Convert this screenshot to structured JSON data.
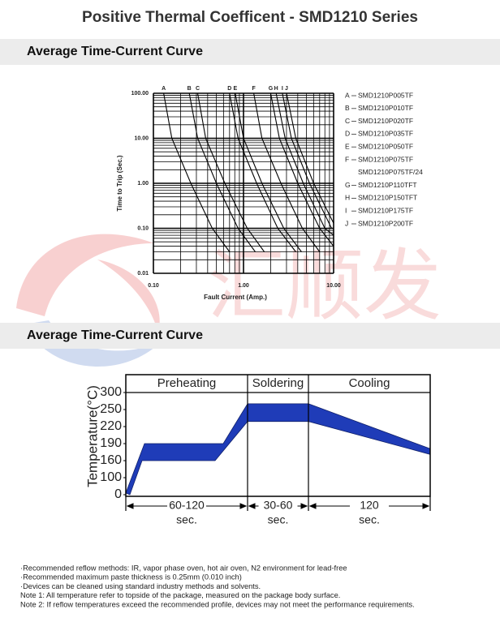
{
  "header": {
    "title": "Positive Thermal Coefficent - SMD1210 Series"
  },
  "sections": [
    "Average Time-Current Curve",
    "Average Time-Current Curve"
  ],
  "watermark": "汇顺发",
  "chart_data": [
    {
      "type": "line",
      "xlabel": "Fault Current (Amp.)",
      "ylabel": "Time to Trip (Sec.)",
      "log_x": true,
      "log_y": true,
      "grid": "minor",
      "color": "#000000",
      "xlim": [
        0.1,
        10
      ],
      "ylim": [
        0.01,
        100
      ],
      "xticks": [
        {
          "value": 0.1,
          "label": "0.10"
        },
        {
          "value": 1,
          "label": "1.00"
        },
        {
          "value": 10,
          "label": "10.00"
        }
      ],
      "yticks": [
        0.01,
        {
          "value": 0.1,
          "label": "0.10"
        },
        {
          "value": 1,
          "label": "1.00"
        },
        {
          "value": 10,
          "label": "10.00"
        },
        {
          "value": 100,
          "label": "100.00"
        }
      ],
      "series": [
        {
          "label": "A",
          "name": "SMD1210P005TF",
          "x": [
            0.13,
            0.16,
            0.26,
            0.45,
            0.7
          ],
          "values": [
            100,
            10,
            1,
            0.1,
            0.03
          ]
        },
        {
          "label": "B",
          "name": "SMD1210P010TF",
          "x": [
            0.25,
            0.31,
            0.5,
            0.87,
            1.35
          ],
          "values": [
            100,
            10,
            1,
            0.1,
            0.03
          ]
        },
        {
          "label": "C",
          "name": "SMD1210P020TF",
          "x": [
            0.31,
            0.38,
            0.62,
            1.1,
            1.7
          ],
          "values": [
            100,
            10,
            1,
            0.1,
            0.03
          ]
        },
        {
          "label": "D",
          "name": "SMD1210P035TF",
          "x": [
            0.7,
            0.87,
            1.4,
            2.4,
            3.8
          ],
          "values": [
            100,
            10,
            1,
            0.1,
            0.03
          ]
        },
        {
          "label": "E",
          "name": "SMD1210P050TF",
          "x": [
            0.81,
            1.0,
            1.6,
            2.8,
            4.4
          ],
          "values": [
            100,
            10,
            1,
            0.1,
            0.03
          ]
        },
        {
          "label": "F",
          "name": "SMD1210P075TF",
          "x": [
            1.3,
            1.6,
            2.6,
            4.5,
            7
          ],
          "values": [
            100,
            10,
            1,
            0.1,
            0.03
          ]
        },
        {
          "name": "SMD1210P075TF/24",
          "x": [],
          "values": []
        },
        {
          "label": "G",
          "name": "SMD1210P110TFT",
          "x": [
            2.0,
            2.5,
            4.0,
            7.0,
            10
          ],
          "values": [
            100,
            10,
            1,
            0.1,
            0.04
          ]
        },
        {
          "label": "H",
          "name": "SMD1210P150TFT",
          "x": [
            2.3,
            2.9,
            4.6,
            8,
            10
          ],
          "values": [
            100,
            10,
            1,
            0.1,
            0.07
          ]
        },
        {
          "label": "I",
          "name": "SMD1210P175TF",
          "x": [
            2.7,
            3.4,
            5.4,
            9.5
          ],
          "values": [
            100,
            10,
            1,
            0.1
          ]
        },
        {
          "label": "J",
          "name": "SMD1210P200TF",
          "x": [
            3.0,
            3.8,
            6,
            10
          ],
          "values": [
            100,
            10,
            1,
            0.13
          ]
        }
      ]
    },
    {
      "type": "area",
      "ylabel": "Temperature(°C)",
      "color": "#1f3cb8",
      "xlim": [
        0,
        375
      ],
      "ylim": [
        0,
        300
      ],
      "yticks": [
        0,
        100,
        160,
        190,
        220,
        250,
        300
      ],
      "phases": [
        {
          "name": "Preheating",
          "duration": "60-120",
          "unit": "sec.",
          "start": 0,
          "end": 150
        },
        {
          "name": "Soldering",
          "duration": "30-60",
          "unit": "sec.",
          "start": 150,
          "end": 225
        },
        {
          "name": "Cooling",
          "duration": "120",
          "unit": "sec.",
          "start": 225,
          "end": 375
        }
      ],
      "series": [
        {
          "x": [
            0,
            23,
            120,
            150,
            225,
            375
          ],
          "values": [
            10,
            190,
            190,
            267,
            267,
            181
          ]
        },
        {
          "x": [
            5,
            20,
            110,
            150,
            225,
            375
          ],
          "values": [
            0,
            160,
            160,
            229,
            229,
            171
          ]
        }
      ]
    }
  ],
  "notes": [
    "·Recommended reflow methods: IR, vapor phase oven, hot air oven, N2 environment for lead-free",
    "·Recommended maximum paste thickness is 0.25mm (0.010 inch)",
    "·Devices can be cleaned using standard industry methods and solvents.",
    "Note 1: All temperature refer to topside of the package, measured on the package body surface.",
    "Note 2: If reflow temperatures exceed the recommended profile, devices may not meet the performance requirements."
  ]
}
